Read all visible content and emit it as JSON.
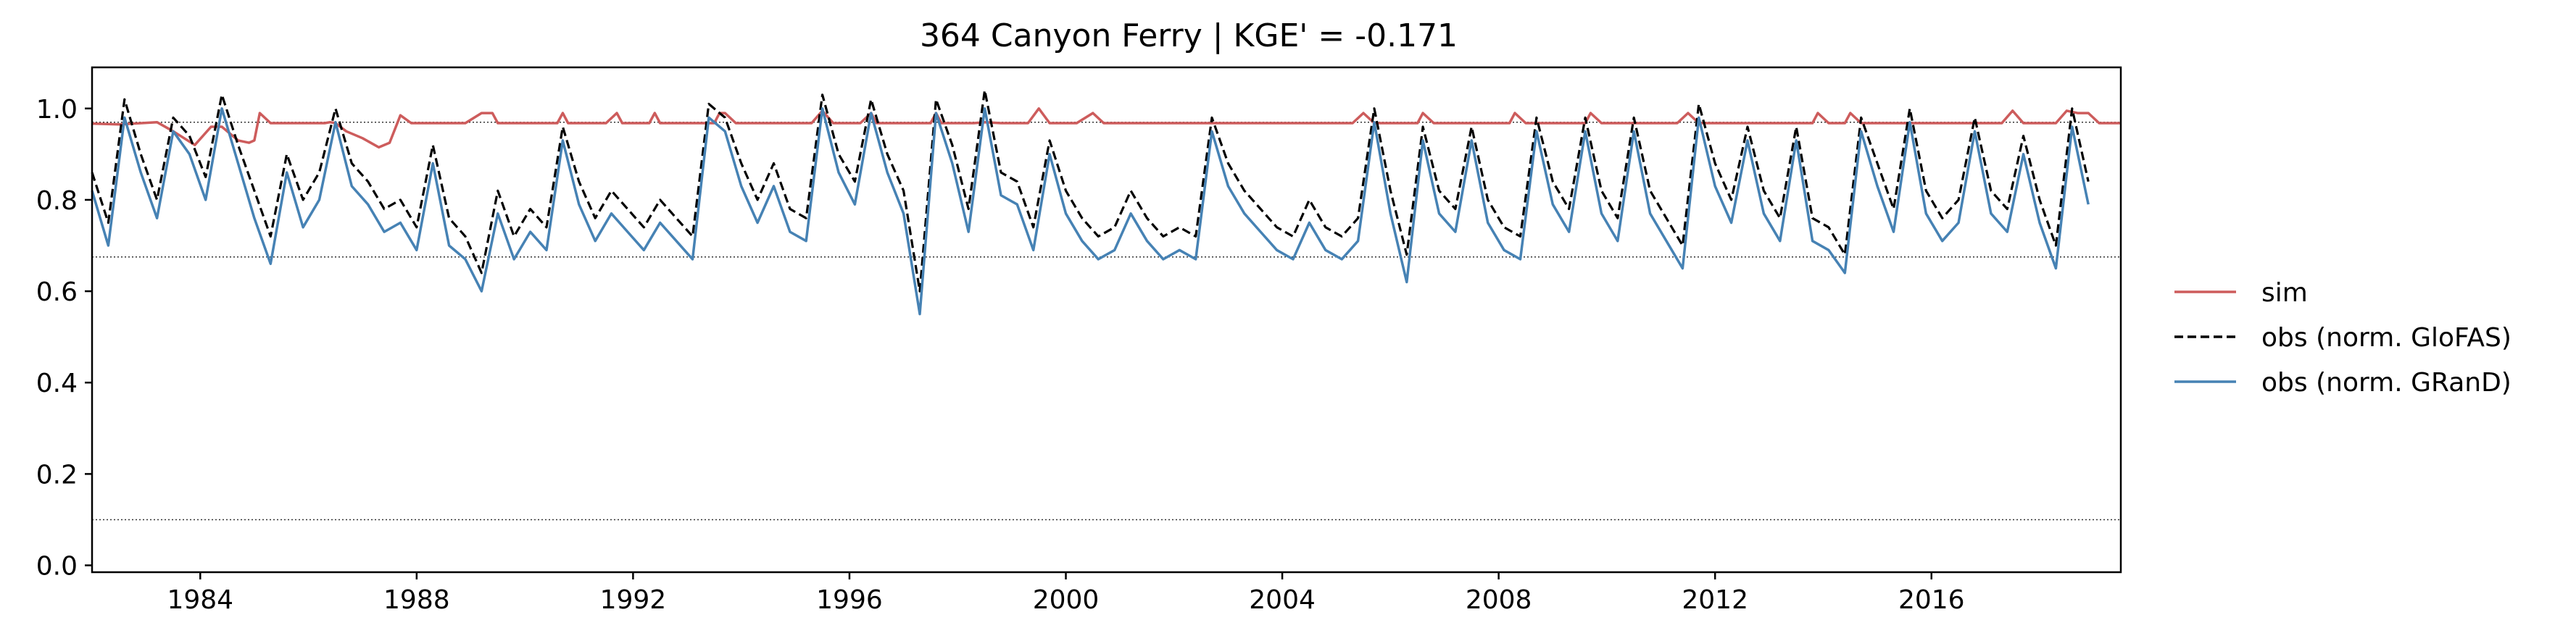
{
  "chart_data": {
    "type": "line",
    "title": "364  Canyon Ferry | KGE' = -0.171",
    "xlabel": "",
    "ylabel": "",
    "xlim": [
      1982.0,
      2019.5
    ],
    "ylim": [
      -0.015,
      1.09
    ],
    "x_ticks": [
      1984,
      1988,
      1992,
      1996,
      2000,
      2004,
      2008,
      2012,
      2016
    ],
    "x_tick_labels": [
      "1984",
      "1988",
      "1992",
      "1996",
      "2000",
      "2004",
      "2008",
      "2012",
      "2016"
    ],
    "y_ticks": [
      0.0,
      0.2,
      0.4,
      0.6,
      0.8,
      1.0
    ],
    "y_tick_labels": [
      "0.0",
      "0.2",
      "0.4",
      "0.6",
      "0.8",
      "1.0"
    ],
    "grid": false,
    "legend_position": "right, outside plot",
    "reference_lines": [
      {
        "y": 0.1,
        "style": "dotted"
      },
      {
        "y": 0.675,
        "style": "dotted"
      },
      {
        "y": 0.97,
        "style": "dotted"
      }
    ],
    "series": [
      {
        "name": "sim",
        "color": "#cd5c5c",
        "style": "solid",
        "x": [
          1982.0,
          1982.5,
          1983.2,
          1983.5,
          1983.9,
          1984.2,
          1984.4,
          1984.7,
          1984.9,
          1985.0,
          1985.1,
          1985.3,
          1986.0,
          1986.3,
          1986.4,
          1986.5,
          1986.7,
          1987.0,
          1987.3,
          1987.5,
          1987.7,
          1987.9,
          1988.2,
          1988.9,
          1989.2,
          1989.4,
          1989.5,
          1990.0,
          1990.6,
          1990.7,
          1990.8,
          1991.5,
          1991.7,
          1991.8,
          1992.3,
          1992.4,
          1992.5,
          1993.5,
          1993.6,
          1993.7,
          1993.9,
          1995.3,
          1995.5,
          1995.7,
          1996.2,
          1996.4,
          1996.5,
          1997.5,
          1997.6,
          1997.7,
          1998.3,
          1998.5,
          1998.8,
          1999.0,
          1999.3,
          1999.5,
          1999.7,
          2000.2,
          2000.5,
          2000.7,
          2002.5,
          2002.7,
          2004.5,
          2005.3,
          2005.5,
          2005.7,
          2006.5,
          2006.6,
          2006.8,
          2008.2,
          2008.3,
          2008.5,
          2009.6,
          2009.7,
          2009.9,
          2011.3,
          2011.5,
          2011.7,
          2013.8,
          2013.9,
          2014.1,
          2014.4,
          2014.5,
          2014.7,
          2016.0,
          2017.3,
          2017.5,
          2017.7,
          2018.3,
          2018.5,
          2018.7,
          2018.9,
          2019.1,
          2019.5
        ],
        "y": [
          0.967,
          0.965,
          0.97,
          0.95,
          0.92,
          0.96,
          0.96,
          0.93,
          0.925,
          0.93,
          0.99,
          0.968,
          0.968,
          0.968,
          0.97,
          0.968,
          0.95,
          0.935,
          0.915,
          0.925,
          0.985,
          0.968,
          0.968,
          0.968,
          0.99,
          0.99,
          0.968,
          0.968,
          0.968,
          0.99,
          0.968,
          0.968,
          0.99,
          0.968,
          0.968,
          0.99,
          0.968,
          0.968,
          0.99,
          0.99,
          0.968,
          0.968,
          0.995,
          0.968,
          0.968,
          0.99,
          0.968,
          0.968,
          0.99,
          0.968,
          0.968,
          0.97,
          0.968,
          0.968,
          0.968,
          1.0,
          0.968,
          0.968,
          0.99,
          0.968,
          0.968,
          0.968,
          0.968,
          0.968,
          0.99,
          0.968,
          0.968,
          0.99,
          0.968,
          0.968,
          0.99,
          0.968,
          0.968,
          0.99,
          0.968,
          0.968,
          0.99,
          0.968,
          0.968,
          0.99,
          0.968,
          0.968,
          0.99,
          0.968,
          0.968,
          0.968,
          0.995,
          0.968,
          0.968,
          0.995,
          0.99,
          0.99,
          0.968,
          0.968
        ]
      },
      {
        "name": "obs (norm. GloFAS)",
        "color": "#000000",
        "style": "dashed",
        "x": [
          1982.0,
          1982.3,
          1982.6,
          1982.9,
          1983.2,
          1983.5,
          1983.8,
          1984.1,
          1984.4,
          1984.7,
          1985.0,
          1985.3,
          1985.6,
          1985.9,
          1986.2,
          1986.5,
          1986.8,
          1987.1,
          1987.4,
          1987.7,
          1988.0,
          1988.3,
          1988.6,
          1988.9,
          1989.2,
          1989.5,
          1989.8,
          1990.1,
          1990.4,
          1990.7,
          1991.0,
          1991.3,
          1991.6,
          1991.9,
          1992.2,
          1992.5,
          1992.8,
          1993.1,
          1993.4,
          1993.7,
          1994.0,
          1994.3,
          1994.6,
          1994.9,
          1995.2,
          1995.5,
          1995.8,
          1996.1,
          1996.4,
          1996.7,
          1997.0,
          1997.3,
          1997.6,
          1997.9,
          1998.2,
          1998.5,
          1998.8,
          1999.1,
          1999.4,
          1999.7,
          2000.0,
          2000.3,
          2000.6,
          2000.9,
          2001.2,
          2001.5,
          2001.8,
          2002.1,
          2002.4,
          2002.7,
          2003.0,
          2003.3,
          2003.6,
          2003.9,
          2004.2,
          2004.5,
          2004.8,
          2005.1,
          2005.4,
          2005.7,
          2006.0,
          2006.3,
          2006.6,
          2006.9,
          2007.2,
          2007.5,
          2007.8,
          2008.1,
          2008.4,
          2008.7,
          2009.0,
          2009.3,
          2009.6,
          2009.9,
          2010.2,
          2010.5,
          2010.8,
          2011.1,
          2011.4,
          2011.7,
          2012.0,
          2012.3,
          2012.6,
          2012.9,
          2013.2,
          2013.5,
          2013.8,
          2014.1,
          2014.4,
          2014.7,
          2015.0,
          2015.3,
          2015.6,
          2015.9,
          2016.2,
          2016.5,
          2016.8,
          2017.1,
          2017.4,
          2017.7,
          2018.0,
          2018.3,
          2018.6,
          2018.9
        ],
        "y": [
          0.86,
          0.75,
          1.02,
          0.9,
          0.8,
          0.98,
          0.94,
          0.85,
          1.03,
          0.92,
          0.82,
          0.72,
          0.9,
          0.8,
          0.86,
          1.0,
          0.88,
          0.84,
          0.78,
          0.8,
          0.74,
          0.92,
          0.76,
          0.72,
          0.64,
          0.82,
          0.72,
          0.78,
          0.74,
          0.96,
          0.84,
          0.76,
          0.82,
          0.78,
          0.74,
          0.8,
          0.76,
          0.72,
          1.01,
          0.98,
          0.88,
          0.8,
          0.88,
          0.78,
          0.76,
          1.03,
          0.9,
          0.84,
          1.02,
          0.9,
          0.82,
          0.6,
          1.02,
          0.92,
          0.78,
          1.04,
          0.86,
          0.84,
          0.74,
          0.93,
          0.82,
          0.76,
          0.72,
          0.74,
          0.82,
          0.76,
          0.72,
          0.74,
          0.72,
          0.98,
          0.88,
          0.82,
          0.78,
          0.74,
          0.72,
          0.8,
          0.74,
          0.72,
          0.76,
          1.0,
          0.82,
          0.68,
          0.96,
          0.82,
          0.78,
          0.96,
          0.8,
          0.74,
          0.72,
          0.98,
          0.84,
          0.78,
          0.98,
          0.82,
          0.76,
          0.98,
          0.82,
          0.76,
          0.7,
          1.01,
          0.88,
          0.8,
          0.96,
          0.82,
          0.76,
          0.96,
          0.76,
          0.74,
          0.68,
          0.98,
          0.88,
          0.78,
          1.0,
          0.82,
          0.76,
          0.8,
          0.98,
          0.82,
          0.78,
          0.94,
          0.8,
          0.7,
          1.0,
          0.84
        ]
      },
      {
        "name": "obs (norm. GRanD)",
        "color": "#4682b4",
        "style": "solid",
        "x": [
          1982.0,
          1982.3,
          1982.6,
          1982.9,
          1983.2,
          1983.5,
          1983.8,
          1984.1,
          1984.4,
          1984.7,
          1985.0,
          1985.3,
          1985.6,
          1985.9,
          1986.2,
          1986.5,
          1986.8,
          1987.1,
          1987.4,
          1987.7,
          1988.0,
          1988.3,
          1988.6,
          1988.9,
          1989.2,
          1989.5,
          1989.8,
          1990.1,
          1990.4,
          1990.7,
          1991.0,
          1991.3,
          1991.6,
          1991.9,
          1992.2,
          1992.5,
          1992.8,
          1993.1,
          1993.4,
          1993.7,
          1994.0,
          1994.3,
          1994.6,
          1994.9,
          1995.2,
          1995.5,
          1995.8,
          1996.1,
          1996.4,
          1996.7,
          1997.0,
          1997.3,
          1997.6,
          1997.9,
          1998.2,
          1998.5,
          1998.8,
          1999.1,
          1999.4,
          1999.7,
          2000.0,
          2000.3,
          2000.6,
          2000.9,
          2001.2,
          2001.5,
          2001.8,
          2002.1,
          2002.4,
          2002.7,
          2003.0,
          2003.3,
          2003.6,
          2003.9,
          2004.2,
          2004.5,
          2004.8,
          2005.1,
          2005.4,
          2005.7,
          2006.0,
          2006.3,
          2006.6,
          2006.9,
          2007.2,
          2007.5,
          2007.8,
          2008.1,
          2008.4,
          2008.7,
          2009.0,
          2009.3,
          2009.6,
          2009.9,
          2010.2,
          2010.5,
          2010.8,
          2011.1,
          2011.4,
          2011.7,
          2012.0,
          2012.3,
          2012.6,
          2012.9,
          2013.2,
          2013.5,
          2013.8,
          2014.1,
          2014.4,
          2014.7,
          2015.0,
          2015.3,
          2015.6,
          2015.9,
          2016.2,
          2016.5,
          2016.8,
          2017.1,
          2017.4,
          2017.7,
          2018.0,
          2018.3,
          2018.6,
          2018.9
        ],
        "y": [
          0.82,
          0.7,
          0.98,
          0.86,
          0.76,
          0.95,
          0.9,
          0.8,
          1.0,
          0.88,
          0.76,
          0.66,
          0.86,
          0.74,
          0.8,
          0.97,
          0.83,
          0.79,
          0.73,
          0.75,
          0.69,
          0.88,
          0.7,
          0.67,
          0.6,
          0.77,
          0.67,
          0.73,
          0.69,
          0.93,
          0.79,
          0.71,
          0.77,
          0.73,
          0.69,
          0.75,
          0.71,
          0.67,
          0.98,
          0.95,
          0.83,
          0.75,
          0.83,
          0.73,
          0.71,
          1.0,
          0.86,
          0.79,
          0.99,
          0.86,
          0.77,
          0.55,
          0.99,
          0.88,
          0.73,
          1.0,
          0.81,
          0.79,
          0.69,
          0.9,
          0.77,
          0.71,
          0.67,
          0.69,
          0.77,
          0.71,
          0.67,
          0.69,
          0.67,
          0.95,
          0.83,
          0.77,
          0.73,
          0.69,
          0.67,
          0.75,
          0.69,
          0.67,
          0.71,
          0.97,
          0.77,
          0.62,
          0.93,
          0.77,
          0.73,
          0.93,
          0.75,
          0.69,
          0.67,
          0.95,
          0.79,
          0.73,
          0.95,
          0.77,
          0.71,
          0.95,
          0.77,
          0.71,
          0.65,
          0.98,
          0.83,
          0.75,
          0.93,
          0.77,
          0.71,
          0.93,
          0.71,
          0.69,
          0.64,
          0.95,
          0.83,
          0.73,
          0.97,
          0.77,
          0.71,
          0.75,
          0.95,
          0.77,
          0.73,
          0.9,
          0.75,
          0.65,
          0.96,
          0.79
        ]
      }
    ]
  }
}
